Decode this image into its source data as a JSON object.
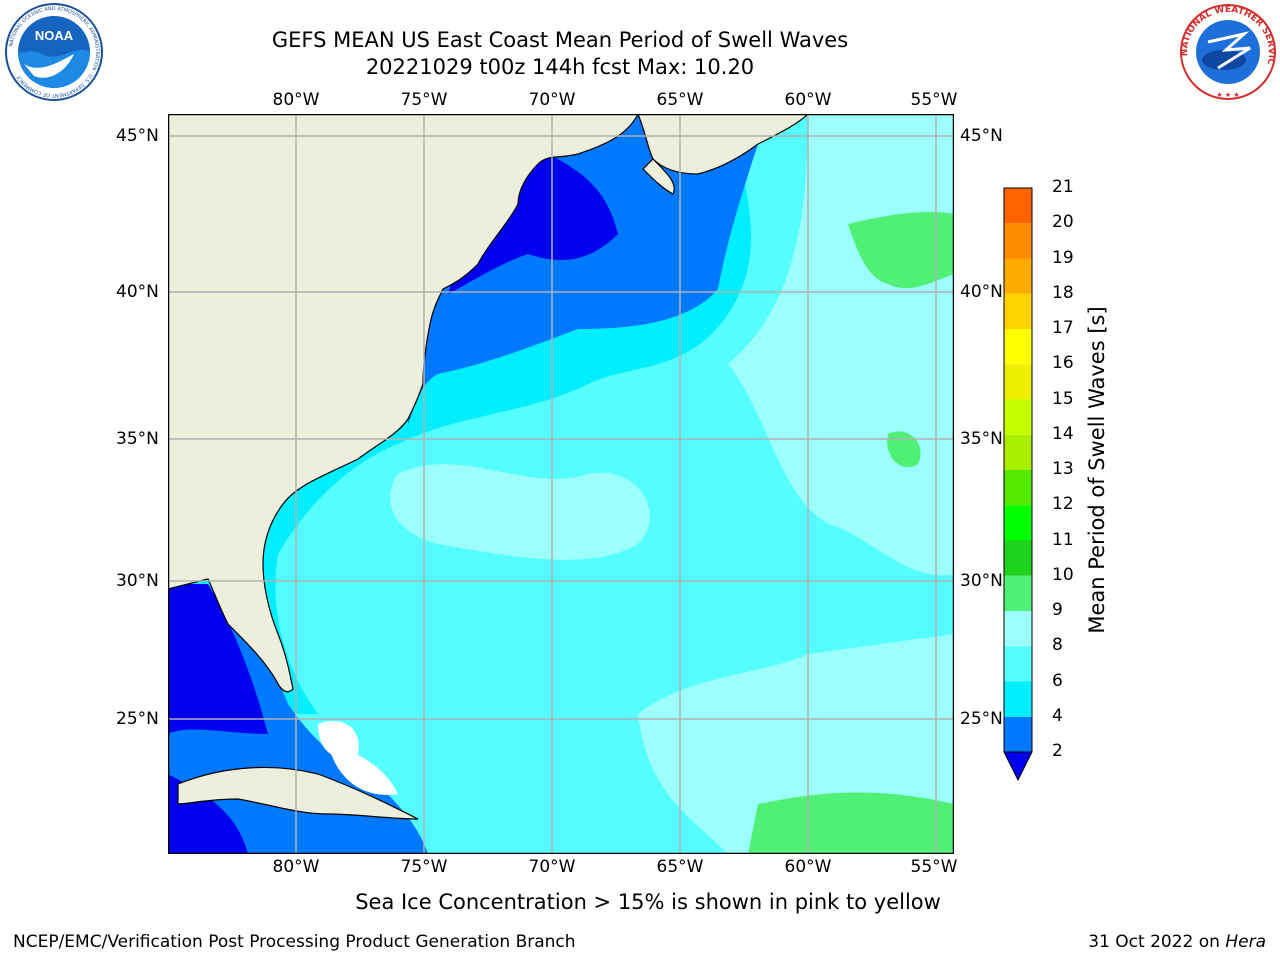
{
  "header": {
    "title_line1": "GEFS MEAN US East Coast Mean Period of Swell Waves",
    "title_line2": "20221029 t00z 144h fcst   Max: 10.20"
  },
  "logos": {
    "left": {
      "icon": "noaa-logo-icon",
      "text": "NOAA",
      "ring_text": "NATIONAL OCEANIC AND ATMOSPHERIC ADMINISTRATION · U.S. DEPARTMENT OF COMMERCE"
    },
    "right": {
      "icon": "nws-logo-icon",
      "ring_text": "NATIONAL WEATHER SERVICE"
    }
  },
  "map": {
    "lon_labels": [
      "80°W",
      "75°W",
      "70°W",
      "65°W",
      "60°W",
      "55°W"
    ],
    "lat_labels": [
      "45°N",
      "40°N",
      "35°N",
      "30°N",
      "25°N"
    ],
    "colors": {
      "land": "#eeeedc",
      "grid": "#b0b0b0",
      "coast": "#000000",
      "no_data": "#ffffff"
    }
  },
  "colorbar": {
    "title": "Mean Period of Swell Waves [s]",
    "tick_labels": [
      "2",
      "4",
      "6",
      "8",
      "9",
      "10",
      "11",
      "12",
      "13",
      "14",
      "15",
      "16",
      "17",
      "18",
      "19",
      "20",
      "21"
    ],
    "colors": [
      "#0000ee",
      "#0078ff",
      "#00eeff",
      "#55ffff",
      "#9cfffc",
      "#50f077",
      "#1ed21e",
      "#00ff00",
      "#55ea00",
      "#aaee00",
      "#c8ff00",
      "#eeee00",
      "#ffff00",
      "#ffd200",
      "#ffaa00",
      "#ff8c00",
      "#ff6400",
      "#ff3200",
      "#ff0000"
    ],
    "extend": "min"
  },
  "footer": {
    "note": "Sea Ice Concentration > 15% is shown in pink to yellow",
    "credit": "NCEP/EMC/Verification Post Processing Product Generation Branch",
    "date": "31 Oct 2022 on",
    "host": "Hera"
  }
}
